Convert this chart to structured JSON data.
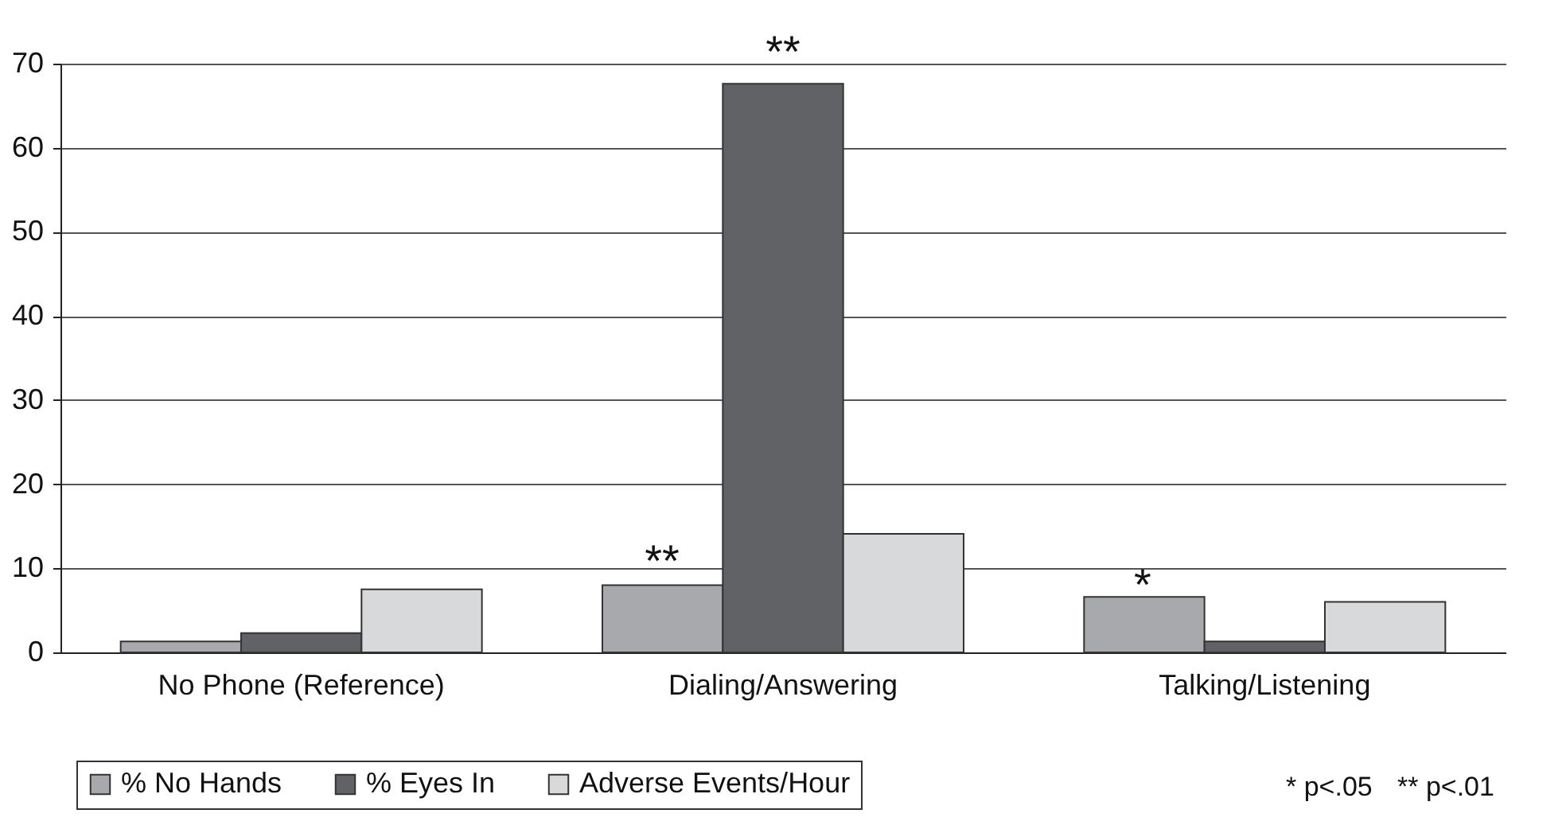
{
  "chart_data": {
    "type": "bar",
    "categories": [
      "No Phone (Reference)",
      "Dialing/Answering",
      "Talking/Listening"
    ],
    "series": [
      {
        "name": "% No Hands",
        "color": "#a8a9ad",
        "values": [
          1.3,
          8.0,
          6.6
        ]
      },
      {
        "name": "% Eyes In",
        "color": "#616266",
        "values": [
          2.3,
          67.6,
          1.3
        ]
      },
      {
        "name": "Adverse Events/Hour",
        "color": "#d8d9db",
        "values": [
          7.5,
          14.1,
          6.0
        ]
      }
    ],
    "ylim": [
      0,
      70
    ],
    "yticks": [
      0,
      10,
      20,
      30,
      40,
      50,
      60,
      70
    ],
    "grid": "y",
    "legend": "bottom",
    "annotations": [
      "**",
      "**",
      "*",
      "* p<.05",
      "** p<.01"
    ]
  }
}
